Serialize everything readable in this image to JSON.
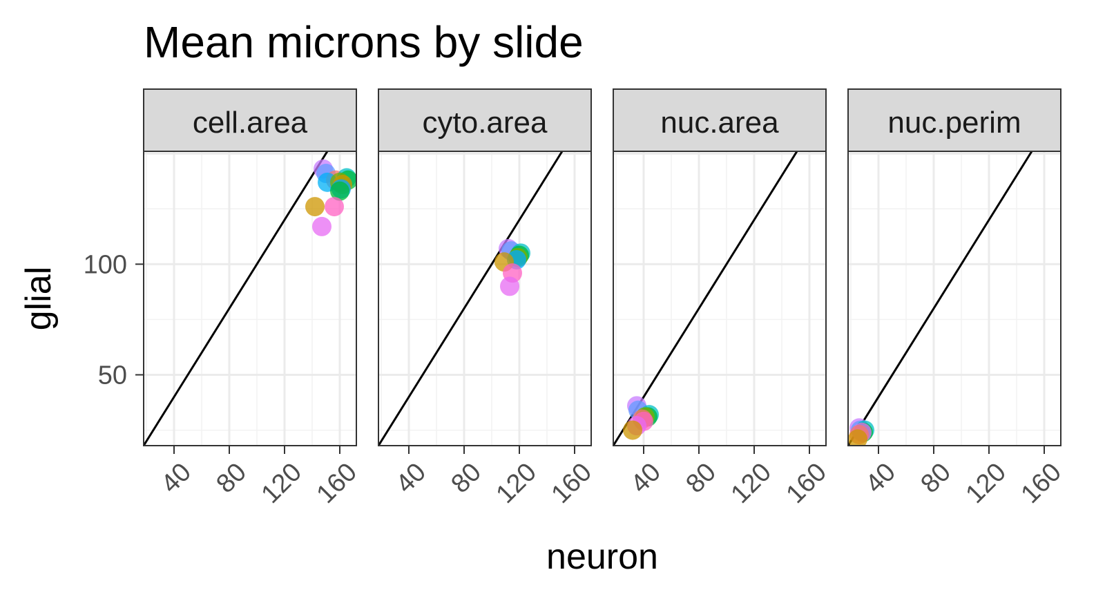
{
  "chart_data": {
    "type": "scatter",
    "title": "Mean microns by slide",
    "xlabel": "neuron",
    "ylabel": "glial",
    "xlim": [
      18,
      172
    ],
    "ylim": [
      18,
      151
    ],
    "x_ticks": [
      40,
      80,
      120,
      160
    ],
    "y_ticks": [
      50,
      100
    ],
    "x_tick_labels": [
      "40",
      "80",
      "120",
      "160"
    ],
    "y_tick_labels": [
      "50",
      "100"
    ],
    "reference_line": {
      "type": "identity",
      "slope": 1,
      "intercept": 0,
      "color": "#000000"
    },
    "point_alpha": 0.75,
    "grid": true,
    "facets": [
      {
        "label": "cell.area",
        "points": [
          {
            "x": 148,
            "y": 143,
            "color": "#C77CFF"
          },
          {
            "x": 150,
            "y": 141,
            "color": "#619CFF"
          },
          {
            "x": 157,
            "y": 138,
            "color": "#F8766D"
          },
          {
            "x": 165,
            "y": 139,
            "color": "#00BFC4"
          },
          {
            "x": 166,
            "y": 138,
            "color": "#00BA38"
          },
          {
            "x": 151,
            "y": 137,
            "color": "#00B0F6"
          },
          {
            "x": 160,
            "y": 137,
            "color": "#7CAE00"
          },
          {
            "x": 162,
            "y": 136,
            "color": "#CD9600"
          },
          {
            "x": 161,
            "y": 134,
            "color": "#00A9FF"
          },
          {
            "x": 160,
            "y": 133,
            "color": "#00BA38"
          },
          {
            "x": 142,
            "y": 126,
            "color": "#CD9600"
          },
          {
            "x": 156,
            "y": 126,
            "color": "#FF61C3"
          },
          {
            "x": 147,
            "y": 117,
            "color": "#E76BF3"
          }
        ]
      },
      {
        "label": "cyto.area",
        "points": [
          {
            "x": 112,
            "y": 107,
            "color": "#C77CFF"
          },
          {
            "x": 114,
            "y": 106,
            "color": "#619CFF"
          },
          {
            "x": 121,
            "y": 105,
            "color": "#00BFC4"
          },
          {
            "x": 120,
            "y": 104,
            "color": "#00BA38"
          },
          {
            "x": 119,
            "y": 103,
            "color": "#7CAE00"
          },
          {
            "x": 118,
            "y": 102,
            "color": "#00A9FF"
          },
          {
            "x": 109,
            "y": 101,
            "color": "#CD9600"
          },
          {
            "x": 115,
            "y": 96,
            "color": "#FF61C3"
          },
          {
            "x": 113,
            "y": 90,
            "color": "#E76BF3"
          }
        ]
      },
      {
        "label": "nuc.area",
        "points": [
          {
            "x": 35,
            "y": 36,
            "color": "#C77CFF"
          },
          {
            "x": 36,
            "y": 34,
            "color": "#619CFF"
          },
          {
            "x": 44,
            "y": 32,
            "color": "#00BFC4"
          },
          {
            "x": 43,
            "y": 31,
            "color": "#00BA38"
          },
          {
            "x": 41,
            "y": 31,
            "color": "#7CAE00"
          },
          {
            "x": 39,
            "y": 30,
            "color": "#F8766D"
          },
          {
            "x": 40,
            "y": 29,
            "color": "#FF61C3"
          },
          {
            "x": 35,
            "y": 27,
            "color": "#E76BF3"
          },
          {
            "x": 32,
            "y": 25,
            "color": "#CD9600"
          }
        ]
      },
      {
        "label": "nuc.perim",
        "points": [
          {
            "x": 26,
            "y": 26,
            "color": "#C77CFF"
          },
          {
            "x": 27,
            "y": 25,
            "color": "#619CFF"
          },
          {
            "x": 30,
            "y": 25,
            "color": "#00BFC4"
          },
          {
            "x": 29,
            "y": 24,
            "color": "#00BA38"
          },
          {
            "x": 28,
            "y": 24,
            "color": "#E76BF3"
          },
          {
            "x": 26,
            "y": 23,
            "color": "#F8766D"
          },
          {
            "x": 25,
            "y": 21,
            "color": "#CD9600"
          }
        ]
      }
    ]
  }
}
